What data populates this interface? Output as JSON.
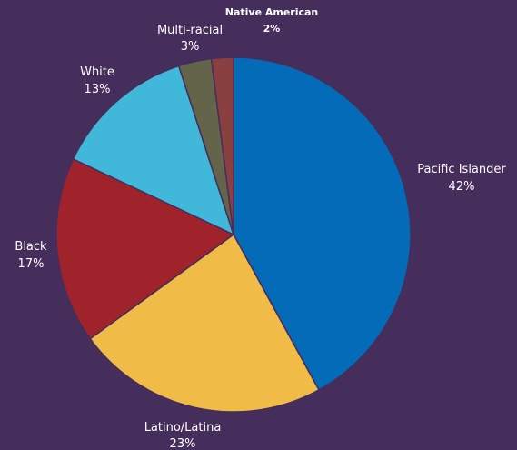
{
  "colors": {
    "background": "#452d5c"
  },
  "chart_data": {
    "type": "pie",
    "legend": "none (direct labels)",
    "slices": [
      {
        "label": "Pacific Islander",
        "value": 42,
        "value_text": "42%",
        "color": "#036bb7"
      },
      {
        "label": "Latino/Latina",
        "value": 23,
        "value_text": "23%",
        "color": "#f0bb47"
      },
      {
        "label": "Black",
        "value": 17,
        "value_text": "17%",
        "color": "#a0232b"
      },
      {
        "label": "White",
        "value": 13,
        "value_text": "13%",
        "color": "#41b7d9"
      },
      {
        "label": "Multi-racial",
        "value": 3,
        "value_text": "3%",
        "color": "#64644a"
      },
      {
        "label": "Native American",
        "value": 2,
        "value_text": "2%",
        "color": "#8a3f41"
      }
    ]
  }
}
